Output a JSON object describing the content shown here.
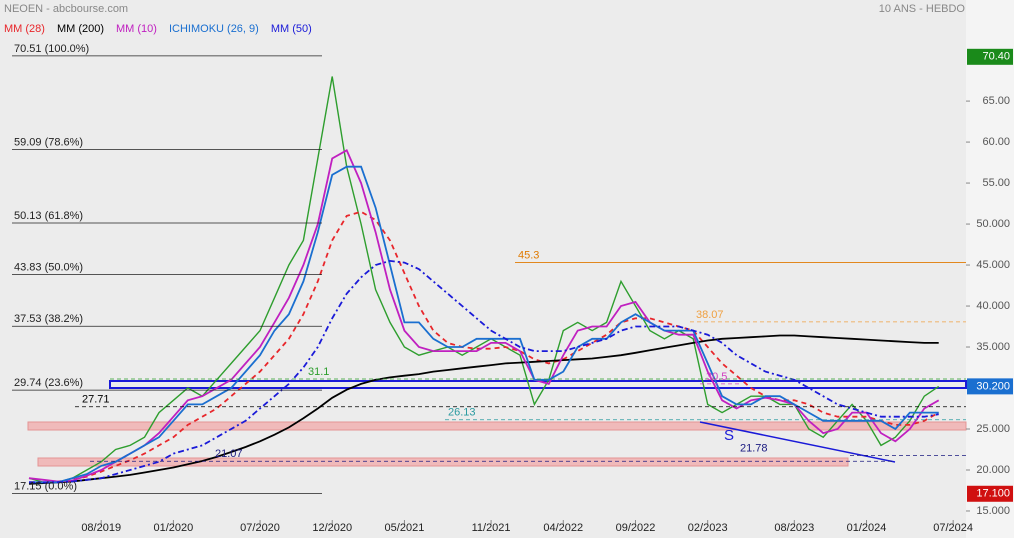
{
  "chart_data": {
    "type": "line",
    "title": "NEOEN - abcbourse.com",
    "subtitle": "10 ANS - HEBDO",
    "x": [
      "03/2019",
      "04/2019",
      "05/2019",
      "06/2019",
      "07/2019",
      "08/2019",
      "09/2019",
      "10/2019",
      "11/2019",
      "12/2019",
      "01/2020",
      "02/2020",
      "03/2020",
      "04/2020",
      "05/2020",
      "06/2020",
      "07/2020",
      "08/2020",
      "09/2020",
      "10/2020",
      "11/2020",
      "12/2020",
      "01/2021",
      "02/2021",
      "03/2021",
      "04/2021",
      "05/2021",
      "06/2021",
      "07/2021",
      "08/2021",
      "09/2021",
      "10/2021",
      "11/2021",
      "12/2021",
      "01/2022",
      "02/2022",
      "03/2022",
      "04/2022",
      "05/2022",
      "06/2022",
      "07/2022",
      "08/2022",
      "09/2022",
      "10/2022",
      "11/2022",
      "12/2022",
      "01/2023",
      "02/2023",
      "03/2023",
      "04/2023",
      "05/2023",
      "06/2023",
      "07/2023",
      "08/2023",
      "09/2023",
      "10/2023",
      "11/2023",
      "12/2023",
      "01/2024",
      "02/2024",
      "03/2024",
      "04/2024",
      "05/2024",
      "06/2024"
    ],
    "close": {
      "color": "#2e9e2e",
      "values": [
        19,
        18.5,
        18.5,
        19,
        20,
        21,
        22.5,
        23,
        24,
        27,
        28.5,
        30,
        29,
        31,
        33,
        35,
        37,
        41,
        45,
        48,
        58,
        68,
        57,
        50,
        42,
        38,
        35,
        34,
        34.5,
        35,
        34,
        35,
        36,
        35,
        34,
        28,
        31,
        37,
        38,
        37,
        38,
        43,
        40,
        37,
        36,
        37,
        36,
        28,
        27,
        28,
        29,
        29,
        28,
        28,
        25,
        24,
        26,
        28,
        26,
        23,
        24,
        26,
        29,
        30.2
      ]
    },
    "series": [
      {
        "name": "MM (28)",
        "color": "#e8262b",
        "dash": "5,4",
        "values": [
          18.5,
          18.5,
          18.6,
          18.8,
          19.2,
          19.8,
          20.5,
          21.2,
          22,
          23,
          24,
          25.5,
          26.5,
          27.5,
          29,
          30.5,
          32,
          34,
          36,
          39,
          43,
          48,
          51,
          51.5,
          50.5,
          48,
          44,
          40,
          37,
          35.5,
          35,
          34.8,
          34.8,
          35,
          34.5,
          33.5,
          33,
          33.5,
          34.5,
          35.5,
          36.5,
          38,
          38.5,
          38.5,
          38,
          37.5,
          37,
          35,
          33,
          31.5,
          30,
          29,
          28.5,
          28.5,
          28,
          27,
          26.5,
          26.5,
          26.5,
          26,
          25.5,
          25.5,
          26,
          27
        ]
      },
      {
        "name": "MM (200)",
        "color": "#000000",
        "dash": "",
        "values": [
          18.3,
          18.4,
          18.5,
          18.6,
          18.8,
          19,
          19.2,
          19.4,
          19.7,
          20,
          20.3,
          20.7,
          21.1,
          21.6,
          22.2,
          22.8,
          23.5,
          24.3,
          25.2,
          26.3,
          27.5,
          28.8,
          29.8,
          30.5,
          31,
          31.3,
          31.5,
          31.7,
          32,
          32.2,
          32.4,
          32.6,
          32.8,
          33,
          33.1,
          33.2,
          33.3,
          33.4,
          33.5,
          33.6,
          33.8,
          34,
          34.3,
          34.6,
          34.9,
          35.2,
          35.5,
          35.8,
          36,
          36.1,
          36.2,
          36.3,
          36.4,
          36.4,
          36.3,
          36.2,
          36.1,
          36,
          35.9,
          35.8,
          35.7,
          35.6,
          35.5,
          35.5
        ]
      },
      {
        "name": "MM (10)",
        "color": "#c020c0",
        "dash": "",
        "values": [
          19,
          18.8,
          18.6,
          18.7,
          19.3,
          20,
          21,
          22,
          23,
          24.5,
          26.5,
          28.5,
          29,
          30,
          31,
          33,
          35,
          38,
          41,
          45,
          50,
          58,
          59,
          55,
          49,
          42,
          37,
          35,
          34.5,
          34.5,
          34.5,
          34.5,
          35.5,
          35.5,
          34.5,
          31,
          30.5,
          34,
          37,
          37.5,
          37.5,
          40,
          40.5,
          38,
          37,
          36.5,
          36.5,
          32,
          28.5,
          27.5,
          28.5,
          28.8,
          28.5,
          28,
          26,
          24.5,
          25,
          27,
          27,
          24.5,
          23.5,
          25,
          27.5,
          28.5
        ]
      },
      {
        "name": "ICHIMOKU (26, 9)",
        "color": "#1a6fd0",
        "dash": "",
        "values": [
          18.5,
          18.5,
          18.5,
          19,
          19.5,
          20.5,
          21,
          22,
          23,
          24,
          26,
          28,
          28,
          29,
          30,
          32,
          34,
          37,
          39,
          43,
          49,
          56,
          57,
          57,
          52,
          45,
          38,
          38,
          36,
          35,
          35,
          36,
          36,
          36,
          36,
          31,
          31,
          32,
          35,
          36,
          36,
          38,
          39,
          38,
          37,
          37,
          37,
          33,
          29,
          28,
          28,
          29,
          29,
          28,
          27,
          26,
          26,
          26,
          26,
          26,
          25,
          27,
          27,
          27
        ]
      },
      {
        "name": "MM (50)",
        "color": "#1a1ad8",
        "dash": "6,3,2,3",
        "values": [
          18.5,
          18.5,
          18.5,
          18.6,
          18.8,
          19,
          19.5,
          20,
          20.5,
          21,
          22,
          22.5,
          23,
          24,
          25,
          26,
          27.5,
          29,
          30.5,
          32.5,
          35,
          38.5,
          41.5,
          43.5,
          45,
          45.5,
          45.3,
          44.5,
          43,
          41.5,
          40,
          38.5,
          37,
          36,
          35,
          34.5,
          34.5,
          34.5,
          35,
          35.5,
          36,
          37,
          37.5,
          37.5,
          37.5,
          37.5,
          37,
          36.5,
          35.5,
          34,
          33,
          32,
          31.5,
          31,
          30,
          29,
          28,
          27.5,
          27,
          26.5,
          26.5,
          26.5,
          26.5,
          26.8
        ]
      }
    ],
    "ylim": [
      13.9,
      75.5
    ],
    "yticks": [
      {
        "value": 65,
        "label": "65.00"
      },
      {
        "value": 60,
        "label": "60.00"
      },
      {
        "value": 55,
        "label": "55.00"
      },
      {
        "value": 50,
        "label": "50.000"
      },
      {
        "value": 45,
        "label": "45.000"
      },
      {
        "value": 40,
        "label": "40.000"
      },
      {
        "value": 35,
        "label": "35.000"
      },
      {
        "value": 25,
        "label": "25.000"
      },
      {
        "value": 20,
        "label": "20.000"
      },
      {
        "value": 15,
        "label": "15.000"
      }
    ],
    "xticks": [
      "08/2019",
      "01/2020",
      "07/2020",
      "12/2020",
      "05/2021",
      "11/2021",
      "04/2022",
      "09/2022",
      "02/2023",
      "08/2023",
      "01/2024",
      "07/2024"
    ],
    "fib_levels": [
      {
        "value": 70.51,
        "label": "70.51 (100.0%)"
      },
      {
        "value": 59.09,
        "label": "59.09 (78.6%)"
      },
      {
        "value": 50.13,
        "label": "50.13 (61.8%)"
      },
      {
        "value": 43.83,
        "label": "43.83 (50.0%)"
      },
      {
        "value": 37.53,
        "label": "37.53 (38.2%)"
      },
      {
        "value": 29.74,
        "label": "29.74 (23.6%)"
      },
      {
        "value": 17.15,
        "label": "17.15 (0.0%)"
      }
    ],
    "annotations": [
      {
        "value": 45.3,
        "color": "#e07a00"
      },
      {
        "value": 38.07,
        "color": "#f0a040"
      },
      {
        "value": 31.1,
        "color": "#2e9e2e"
      },
      {
        "value": 30.5,
        "color": "#d040c0"
      },
      {
        "value": 27.71,
        "color": "#000000"
      },
      {
        "value": 26.13,
        "color": "#2a9aa0"
      },
      {
        "value": 21.07,
        "color": "#1a1a80"
      },
      {
        "value": 21.78,
        "color": "#1a1a80"
      }
    ],
    "pattern_label": "S",
    "price_boxes": [
      {
        "value": 70.4,
        "label": "70.40",
        "color": "#1a8a1a"
      },
      {
        "value": 30.2,
        "label": "30.200",
        "color": "#1a6fd0"
      },
      {
        "value": 17.1,
        "label": "17.100",
        "color": "#d01010"
      }
    ]
  }
}
